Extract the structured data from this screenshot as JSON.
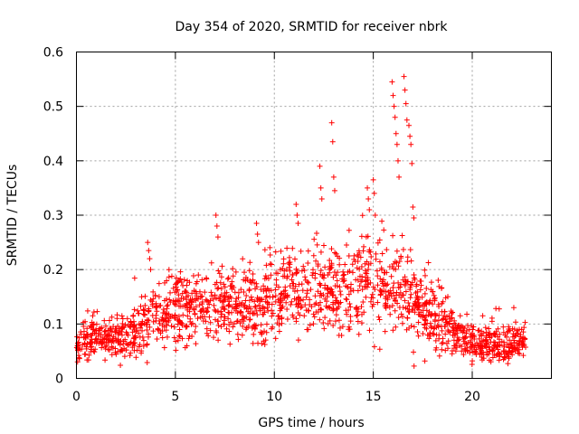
{
  "chart_data": {
    "type": "scatter",
    "title": "Day 354 of 2020, SRMTID for receiver nbrk",
    "xlabel": "GPS time / hours",
    "ylabel": "SRMTID / TECUs",
    "xlim": [
      0,
      24
    ],
    "ylim": [
      0,
      0.6
    ],
    "xticks": [
      0,
      5,
      10,
      15,
      20
    ],
    "yticks": [
      0,
      0.1,
      0.2,
      0.3,
      0.4,
      0.5,
      0.6
    ],
    "xtick_labels": [
      "0",
      "5",
      "10",
      "15",
      "20"
    ],
    "ytick_labels": [
      "0",
      "0.1",
      "0.2",
      "0.3",
      "0.4",
      "0.5",
      "0.6"
    ],
    "grid": true,
    "marker": "+",
    "color": "#ff0000",
    "trend": [
      [
        0.0,
        0.06
      ],
      [
        1.0,
        0.08
      ],
      [
        2.0,
        0.07
      ],
      [
        3.0,
        0.08
      ],
      [
        3.5,
        0.1
      ],
      [
        4.0,
        0.12
      ],
      [
        5.0,
        0.12
      ],
      [
        6.0,
        0.13
      ],
      [
        7.0,
        0.14
      ],
      [
        8.0,
        0.13
      ],
      [
        9.0,
        0.13
      ],
      [
        10.0,
        0.15
      ],
      [
        11.0,
        0.16
      ],
      [
        12.0,
        0.17
      ],
      [
        13.0,
        0.16
      ],
      [
        14.0,
        0.17
      ],
      [
        15.0,
        0.18
      ],
      [
        16.0,
        0.17
      ],
      [
        17.0,
        0.14
      ],
      [
        18.0,
        0.11
      ],
      [
        19.0,
        0.09
      ],
      [
        19.8,
        0.07
      ],
      [
        20.5,
        0.06
      ],
      [
        21.5,
        0.06
      ],
      [
        22.7,
        0.07
      ]
    ],
    "spread": [
      [
        0.0,
        0.015
      ],
      [
        3.0,
        0.02
      ],
      [
        4.0,
        0.03
      ],
      [
        10.0,
        0.035
      ],
      [
        15.0,
        0.045
      ],
      [
        17.0,
        0.04
      ],
      [
        19.0,
        0.025
      ],
      [
        20.0,
        0.015
      ],
      [
        22.7,
        0.015
      ]
    ],
    "x_range": [
      0.0,
      22.7
    ],
    "sample_count": 1700,
    "spikes": [
      [
        3.6,
        0.25
      ],
      [
        3.65,
        0.235
      ],
      [
        3.7,
        0.22
      ],
      [
        3.75,
        0.2
      ],
      [
        7.05,
        0.3
      ],
      [
        7.1,
        0.28
      ],
      [
        7.15,
        0.26
      ],
      [
        9.1,
        0.285
      ],
      [
        9.15,
        0.265
      ],
      [
        9.2,
        0.25
      ],
      [
        11.1,
        0.32
      ],
      [
        11.15,
        0.3
      ],
      [
        11.2,
        0.285
      ],
      [
        12.3,
        0.39
      ],
      [
        12.35,
        0.35
      ],
      [
        12.4,
        0.33
      ],
      [
        12.9,
        0.47
      ],
      [
        12.95,
        0.435
      ],
      [
        13.0,
        0.37
      ],
      [
        13.05,
        0.345
      ],
      [
        14.7,
        0.35
      ],
      [
        14.75,
        0.33
      ],
      [
        14.8,
        0.31
      ],
      [
        15.0,
        0.365
      ],
      [
        15.05,
        0.34
      ],
      [
        15.1,
        0.3
      ],
      [
        15.95,
        0.545
      ],
      [
        16.0,
        0.52
      ],
      [
        16.05,
        0.5
      ],
      [
        16.1,
        0.48
      ],
      [
        16.15,
        0.45
      ],
      [
        16.2,
        0.43
      ],
      [
        16.25,
        0.4
      ],
      [
        16.3,
        0.37
      ],
      [
        16.55,
        0.555
      ],
      [
        16.6,
        0.53
      ],
      [
        16.65,
        0.505
      ],
      [
        16.7,
        0.475
      ],
      [
        16.8,
        0.465
      ],
      [
        16.85,
        0.445
      ],
      [
        16.9,
        0.43
      ],
      [
        16.95,
        0.395
      ],
      [
        17.0,
        0.315
      ],
      [
        17.05,
        0.295
      ],
      [
        21.0,
        0.105
      ],
      [
        22.1,
        0.13
      ]
    ]
  }
}
